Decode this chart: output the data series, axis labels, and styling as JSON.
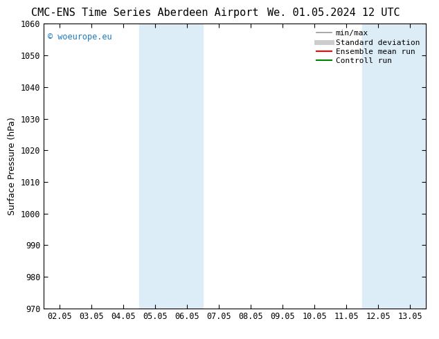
{
  "title_left": "CMC-ENS Time Series Aberdeen Airport",
  "title_right": "We. 01.05.2024 12 UTC",
  "ylabel": "Surface Pressure (hPa)",
  "ylim": [
    970,
    1060
  ],
  "yticks": [
    970,
    980,
    990,
    1000,
    1010,
    1020,
    1030,
    1040,
    1050,
    1060
  ],
  "xtick_labels": [
    "02.05",
    "03.05",
    "04.05",
    "05.05",
    "06.05",
    "07.05",
    "08.05",
    "09.05",
    "10.05",
    "11.05",
    "12.05",
    "13.05"
  ],
  "xtick_positions": [
    0,
    1,
    2,
    3,
    4,
    5,
    6,
    7,
    8,
    9,
    10,
    11
  ],
  "xlim": [
    -0.5,
    11.5
  ],
  "shaded_bands": [
    {
      "xmin": 2.5,
      "xmax": 4.5,
      "color": "#ddedf8"
    },
    {
      "xmin": 9.5,
      "xmax": 11.5,
      "color": "#ddedf8"
    }
  ],
  "watermark": "© woeurope.eu",
  "watermark_color": "#1a7abf",
  "legend_entries": [
    {
      "label": "min/max",
      "color": "#999999",
      "lw": 1.2,
      "style": "solid"
    },
    {
      "label": "Standard deviation",
      "color": "#cccccc",
      "lw": 5,
      "style": "solid"
    },
    {
      "label": "Ensemble mean run",
      "color": "#ff0000",
      "lw": 1.5,
      "style": "solid"
    },
    {
      "label": "Controll run",
      "color": "#008000",
      "lw": 1.5,
      "style": "solid"
    }
  ],
  "bg_color": "#ffffff",
  "title_fontsize": 11,
  "tick_fontsize": 8.5,
  "ylabel_fontsize": 9,
  "legend_fontsize": 8,
  "watermark_fontsize": 8.5
}
